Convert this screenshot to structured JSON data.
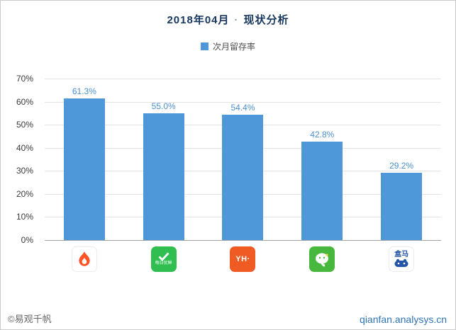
{
  "header": {
    "title_left": "2018年04月",
    "separator": "·",
    "title_right": "现状分析"
  },
  "legend": {
    "label": "次月留存率",
    "color": "#4e97d9"
  },
  "chart_data": {
    "type": "bar",
    "title": "2018年04月 · 现状分析",
    "series_name": "次月留存率",
    "categories": [
      "flame-app",
      "每日优鲜",
      "永辉生活",
      "小象生鲜",
      "盒马"
    ],
    "values": [
      61.3,
      55.0,
      54.4,
      42.8,
      29.2
    ],
    "value_labels": [
      "61.3%",
      "55.0%",
      "54.4%",
      "42.8%",
      "29.2%"
    ],
    "ylim": [
      0,
      70
    ],
    "yticks": [
      "70%",
      "60%",
      "50%",
      "40%",
      "30%",
      "20%",
      "10%",
      "0%"
    ],
    "bar_color": "#4e97d9",
    "grid": true,
    "legend_position": "top"
  },
  "icons": [
    {
      "name": "flame-app-icon",
      "label": ""
    },
    {
      "name": "missfresh-app-icon",
      "label": "每日优鲜"
    },
    {
      "name": "yonghui-app-icon",
      "label": "YH·"
    },
    {
      "name": "xiaoxiang-app-icon",
      "label": ""
    },
    {
      "name": "hema-app-icon",
      "label": "盒马"
    }
  ],
  "footer": {
    "copyright": "©易观千帆",
    "site": "qianfan.analysys.cn"
  }
}
